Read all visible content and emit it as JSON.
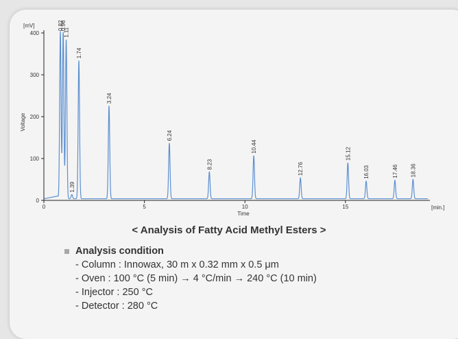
{
  "chart_data": {
    "type": "line",
    "ylabel": "Voltage",
    "yunit": "[mV]",
    "xlabel": "Time",
    "xunit": "[min.]",
    "xlim": [
      0,
      19.2
    ],
    "ylim": [
      0,
      400
    ],
    "xticks": [
      0,
      5,
      10,
      15
    ],
    "yticks": [
      0,
      100,
      200,
      300,
      400
    ],
    "grid": false,
    "line_color": "#5b8fd0",
    "baseline": 4,
    "peaks": [
      {
        "rt": 0.82,
        "label": "0.82",
        "height": 400
      },
      {
        "rt": 0.96,
        "label": "0.96",
        "height": 400
      },
      {
        "rt": 1.11,
        "label": "1.11",
        "height": 380
      },
      {
        "rt": 1.39,
        "label": "1.39",
        "height": 10
      },
      {
        "rt": 1.74,
        "label": "1.74",
        "height": 330
      },
      {
        "rt": 3.24,
        "label": "3.24",
        "height": 222
      },
      {
        "rt": 6.24,
        "label": "6.24",
        "height": 133
      },
      {
        "rt": 8.23,
        "label": "8.23",
        "height": 64
      },
      {
        "rt": 10.44,
        "label": "10.44",
        "height": 103
      },
      {
        "rt": 12.76,
        "label": "12.76",
        "height": 50
      },
      {
        "rt": 15.12,
        "label": "15.12",
        "height": 86
      },
      {
        "rt": 16.03,
        "label": "16.03",
        "height": 42
      },
      {
        "rt": 17.46,
        "label": "17.46",
        "height": 44
      },
      {
        "rt": 18.36,
        "label": "18.36",
        "height": 46
      }
    ]
  },
  "caption": "< Analysis of Fatty Acid Methyl Esters >",
  "conditions": {
    "heading": "Analysis condition",
    "items": [
      "- Column : Innowax, 30 m x 0.32 mm x 0.5 μm",
      "- Oven : 100 °C (5 min) → 4 °C/min → 240 °C (10 min)",
      "- Injector : 250 °C",
      "- Detector : 280 °C"
    ]
  },
  "colors": {
    "card": "#f4f4f4",
    "text": "#333333",
    "axis": "#222222",
    "bullet": "#a8a8a8"
  }
}
